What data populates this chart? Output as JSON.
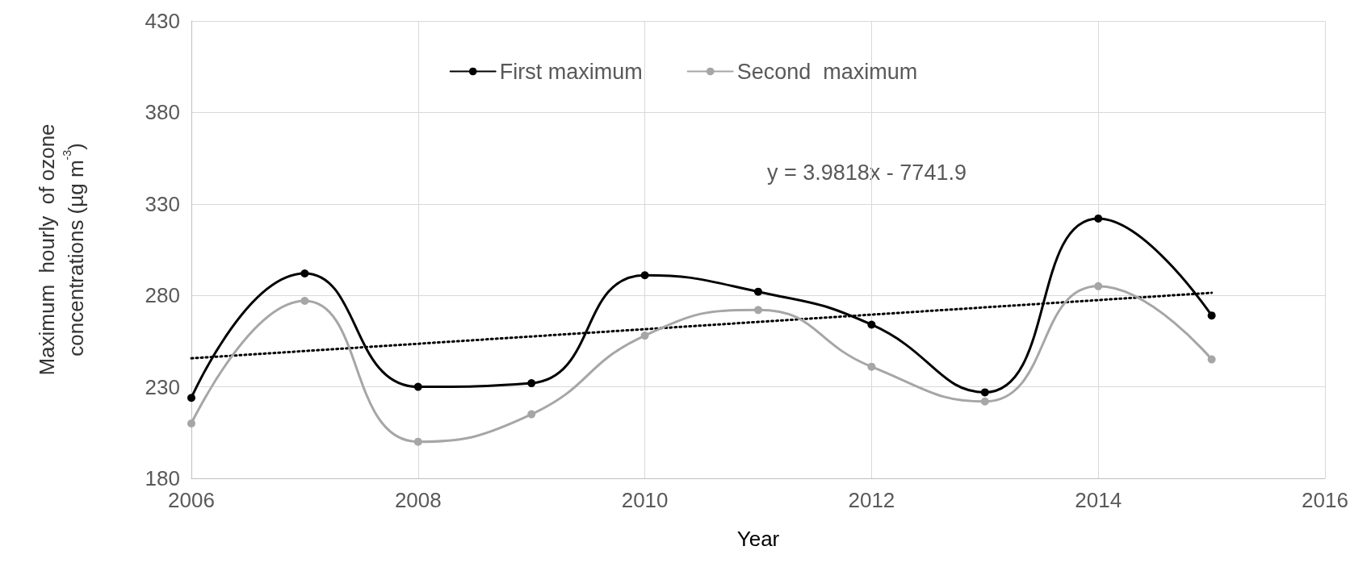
{
  "chart_data": {
    "type": "line",
    "xlabel": "Year",
    "ylabel": "Maximum  hourly  of ozone\nconcentrations (µg m$^{-3}$)",
    "xlim": [
      2006,
      2016
    ],
    "xticks": [
      2006,
      2008,
      2010,
      2012,
      2014,
      2016
    ],
    "ylim": [
      180,
      430
    ],
    "yticks": [
      180,
      230,
      280,
      330,
      380,
      430
    ],
    "grid": true,
    "legend": "top",
    "marker": "circle",
    "annotations": [
      "y = 3.9818x - 7741.9"
    ],
    "series": [
      {
        "name": "First maximum",
        "color": "#000000",
        "x": [
          2006,
          2007,
          2008,
          2009,
          2010,
          2011,
          2012,
          2013,
          2014,
          2015
        ],
        "values": [
          224,
          292,
          230,
          232,
          291,
          282,
          264,
          227,
          322,
          269
        ]
      },
      {
        "name": "Second  maximum",
        "color": "#a6a6a6",
        "x": [
          2006,
          2007,
          2008,
          2009,
          2010,
          2011,
          2012,
          2013,
          2014,
          2015
        ],
        "values": [
          210,
          277,
          200,
          215,
          258,
          272,
          241,
          222,
          285,
          245
        ]
      },
      {
        "color": "#000000",
        "x": [
          2006,
          2015
        ],
        "values": [
          245.6,
          281.4
        ],
        "marker": "none",
        "line_style": "dotted"
      }
    ]
  }
}
